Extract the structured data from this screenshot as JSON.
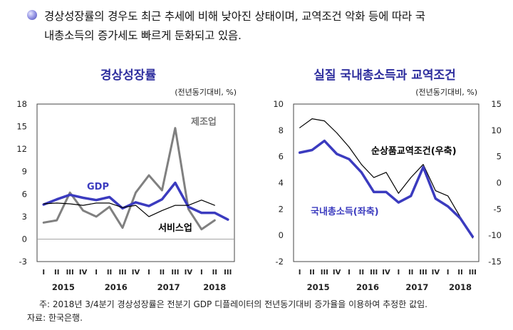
{
  "intro": {
    "line1": "경상성장률의 경우도 최근 추세에 비해 낮아진 상태이며, 교역조건 악화 등에 따라 국",
    "line2": "내총소득의 증가세도 빠르게 둔화되고 있음."
  },
  "footnotes": {
    "note": "주: 2018년 3/4분기 경상성장률은 전분기 GDP 디플레이터의 전년동기대비 증가율을 이용하여 추정한 값임.",
    "source": "자료: 한국은행."
  },
  "chart_data": [
    {
      "type": "line",
      "title": "경상성장률",
      "unit_label": "(전년동기대비, %)",
      "ylim": [
        -3,
        18
      ],
      "yticks": [
        -3,
        0,
        3,
        6,
        9,
        12,
        15,
        18
      ],
      "quarters": [
        "I",
        "II",
        "III",
        "IV",
        "I",
        "II",
        "III",
        "IV",
        "I",
        "II",
        "III",
        "IV",
        "I",
        "II",
        "III"
      ],
      "years": [
        "2015",
        "2016",
        "2017",
        "2018"
      ],
      "series": [
        {
          "name": "제조업",
          "color": "#808080",
          "width": 3,
          "values": [
            2.2,
            2.5,
            6.2,
            3.8,
            3.0,
            4.3,
            1.5,
            6.2,
            8.5,
            6.5,
            14.8,
            4.0,
            1.3,
            2.5,
            null
          ]
        },
        {
          "name": "GDP",
          "color": "#3b3bbf",
          "width": 3.5,
          "values": [
            4.6,
            5.3,
            5.9,
            5.5,
            5.2,
            5.6,
            4.1,
            4.9,
            4.4,
            5.3,
            7.5,
            4.3,
            3.5,
            3.5,
            2.6
          ]
        },
        {
          "name": "서비스업",
          "color": "#000000",
          "width": 1.2,
          "values": [
            4.7,
            4.8,
            4.7,
            4.5,
            4.8,
            4.8,
            4.2,
            4.5,
            3.0,
            3.8,
            4.5,
            4.5,
            5.2,
            4.5,
            null
          ]
        }
      ]
    },
    {
      "type": "line",
      "title": "실질 국내총소득과 교역조건",
      "unit_label": "(전년동기대비, %)",
      "ylim": [
        -2,
        10
      ],
      "yticks": [
        -2,
        0,
        2,
        4,
        6,
        8,
        10
      ],
      "y2lim": [
        -15,
        15
      ],
      "y2ticks": [
        -15,
        -10,
        -5,
        0,
        5,
        10,
        15
      ],
      "quarters": [
        "I",
        "II",
        "III",
        "IV",
        "I",
        "II",
        "III",
        "IV",
        "I",
        "II",
        "III",
        "IV",
        "I",
        "II",
        "III"
      ],
      "years": [
        "2015",
        "2016",
        "2017",
        "2018"
      ],
      "series": [
        {
          "name": "순상품교역조건(우축)",
          "axis": "right",
          "color": "#000000",
          "width": 1.2,
          "values": [
            10.5,
            12.2,
            11.8,
            9.5,
            6.8,
            3.5,
            1.0,
            2.0,
            -2.0,
            1.0,
            3.5,
            -1.5,
            -2.5,
            -6.5,
            -10.5
          ]
        },
        {
          "name": "국내총소득(좌축)",
          "axis": "left",
          "color": "#3b3bbf",
          "width": 3.5,
          "values": [
            6.3,
            6.5,
            7.2,
            6.2,
            5.8,
            4.8,
            3.3,
            3.3,
            2.5,
            3.0,
            5.2,
            2.8,
            2.2,
            1.3,
            -0.1
          ]
        }
      ]
    }
  ]
}
